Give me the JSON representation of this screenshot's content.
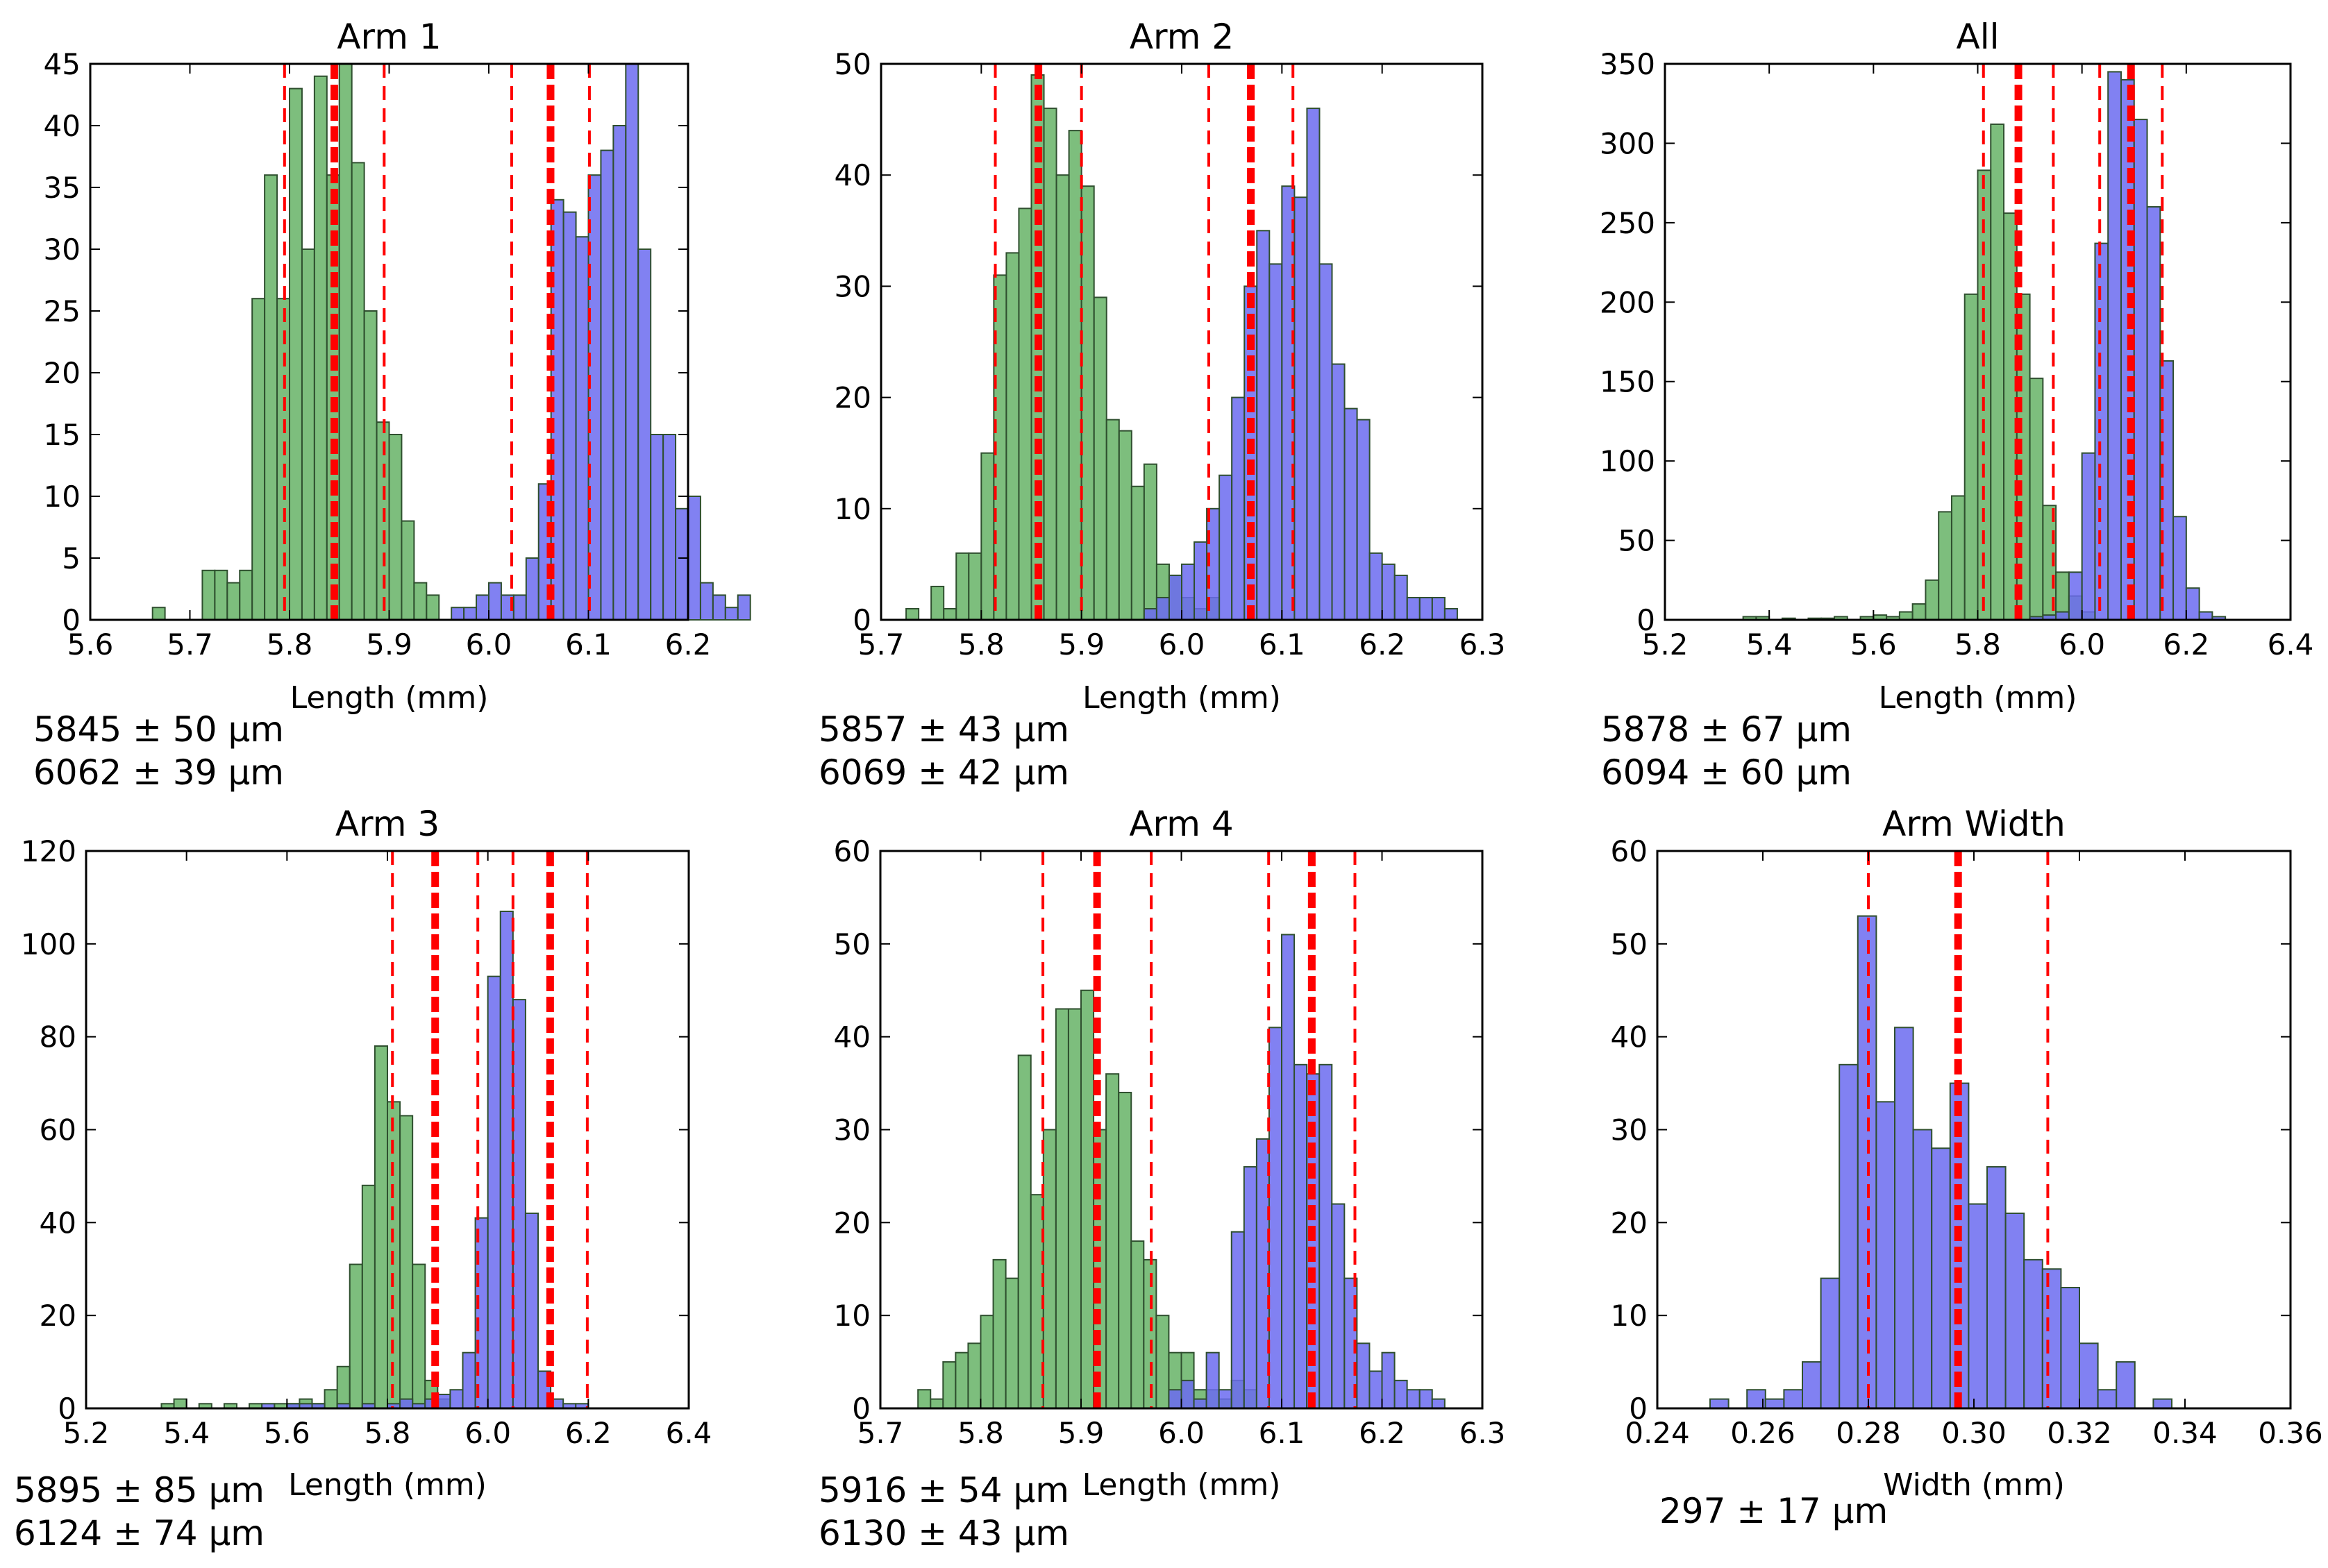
{
  "colors": {
    "green_bar": "#66b366",
    "blue_bar": "#6b6bf0",
    "edge": "#2f4f2f",
    "mean_line": "#ff0000"
  },
  "chart_data": [
    {
      "type": "histogram",
      "title": "Arm 1",
      "xlabel": "Length (mm)",
      "xlim": [
        5.6,
        6.2
      ],
      "ylim": [
        0,
        45
      ],
      "xticks": [
        "5.6",
        "5.7",
        "5.8",
        "5.9",
        "6.0",
        "6.1",
        "6.2"
      ],
      "yticks": [
        "0",
        "5",
        "10",
        "15",
        "20",
        "25",
        "30",
        "35",
        "40",
        "45"
      ],
      "bin_width": 0.0125,
      "series": [
        {
          "color": "green",
          "start": 5.6625,
          "values": [
            1,
            0,
            0,
            0,
            4,
            4,
            3,
            4,
            26,
            36,
            26,
            43,
            30,
            44,
            36,
            45,
            37,
            25,
            16,
            15,
            8,
            3,
            2,
            0,
            0,
            0,
            0,
            0,
            0,
            0
          ]
        },
        {
          "color": "blue",
          "start": 5.9625,
          "values": [
            1,
            1,
            2,
            3,
            2,
            2,
            5,
            11,
            34,
            33,
            31,
            36,
            38,
            40,
            45,
            30,
            15,
            15,
            9,
            10,
            3,
            2,
            1,
            2
          ]
        }
      ],
      "lines": [
        {
          "x": 5.795,
          "style": "dashed"
        },
        {
          "x": 5.845,
          "style": "mean"
        },
        {
          "x": 5.895,
          "style": "dashed"
        },
        {
          "x": 6.023,
          "style": "dashed"
        },
        {
          "x": 6.062,
          "style": "mean"
        },
        {
          "x": 6.101,
          "style": "dashed"
        }
      ],
      "stats": [
        "5845 ± 50 μm",
        "6062 ± 39 μm"
      ]
    },
    {
      "type": "histogram",
      "title": "Arm 2",
      "xlabel": "Length (mm)",
      "xlim": [
        5.7,
        6.3
      ],
      "ylim": [
        0,
        50
      ],
      "xticks": [
        "5.7",
        "5.8",
        "5.9",
        "6.0",
        "6.1",
        "6.2",
        "6.3"
      ],
      "yticks": [
        "0",
        "10",
        "20",
        "30",
        "40",
        "50"
      ],
      "bin_width": 0.0125,
      "series": [
        {
          "color": "green",
          "start": 5.7125,
          "values": [
            0,
            1,
            0,
            3,
            1,
            6,
            6,
            15,
            31,
            33,
            37,
            49,
            46,
            40,
            44,
            39,
            29,
            18,
            17,
            12,
            14,
            5,
            4,
            2,
            1,
            2,
            0
          ]
        },
        {
          "color": "blue",
          "start": 5.9625,
          "values": [
            1,
            2,
            4,
            5,
            7,
            10,
            13,
            20,
            30,
            35,
            32,
            39,
            38,
            46,
            32,
            23,
            19,
            18,
            6,
            5,
            4,
            2,
            2,
            2,
            1
          ]
        }
      ],
      "lines": [
        {
          "x": 5.814,
          "style": "dashed"
        },
        {
          "x": 5.857,
          "style": "mean"
        },
        {
          "x": 5.9,
          "style": "dashed"
        },
        {
          "x": 6.027,
          "style": "dashed"
        },
        {
          "x": 6.069,
          "style": "mean"
        },
        {
          "x": 6.111,
          "style": "dashed"
        }
      ],
      "stats": [
        "5857 ± 43 μm",
        "6069 ± 42 μm"
      ]
    },
    {
      "type": "histogram",
      "title": "All",
      "xlabel": "Length (mm)",
      "xlim": [
        5.2,
        6.4
      ],
      "ylim": [
        0,
        350
      ],
      "xticks": [
        "5.2",
        "5.4",
        "5.6",
        "5.8",
        "6.0",
        "6.2",
        "6.4"
      ],
      "yticks": [
        "0",
        "50",
        "100",
        "150",
        "200",
        "250",
        "300",
        "350"
      ],
      "bin_width": 0.025,
      "series": [
        {
          "color": "green",
          "start": 5.35,
          "values": [
            2,
            2,
            0,
            1,
            0,
            1,
            1,
            2,
            0,
            2,
            3,
            2,
            5,
            10,
            25,
            68,
            78,
            205,
            283,
            312,
            256,
            205,
            152,
            72,
            30,
            15,
            5,
            0,
            0,
            0
          ]
        },
        {
          "color": "blue",
          "start": 5.9,
          "values": [
            2,
            3,
            5,
            30,
            105,
            237,
            345,
            340,
            315,
            260,
            163,
            65,
            20,
            5,
            2
          ]
        }
      ],
      "lines": [
        {
          "x": 5.811,
          "style": "dashed"
        },
        {
          "x": 5.878,
          "style": "mean"
        },
        {
          "x": 5.945,
          "style": "dashed"
        },
        {
          "x": 6.034,
          "style": "dashed"
        },
        {
          "x": 6.094,
          "style": "mean"
        },
        {
          "x": 6.154,
          "style": "dashed"
        }
      ],
      "stats": [
        "5878 ± 67 μm",
        "6094 ± 60 μm"
      ]
    },
    {
      "type": "histogram",
      "title": "Arm 3",
      "xlabel": "Length (mm)",
      "xlim": [
        5.2,
        6.4
      ],
      "ylim": [
        0,
        120
      ],
      "xticks": [
        "5.2",
        "5.4",
        "5.6",
        "5.8",
        "6.0",
        "6.2",
        "6.4"
      ],
      "yticks": [
        "0",
        "20",
        "40",
        "60",
        "80",
        "100",
        "120"
      ],
      "bin_width": 0.025,
      "series": [
        {
          "color": "green",
          "start": 5.35,
          "values": [
            1,
            2,
            0,
            1,
            0,
            1,
            0,
            1,
            0,
            1,
            1,
            2,
            1,
            4,
            9,
            31,
            48,
            78,
            66,
            63,
            31,
            6,
            2,
            0,
            0,
            0,
            0,
            0,
            0
          ]
        },
        {
          "color": "blue",
          "start": 5.55,
          "values": [
            1,
            0,
            1,
            1,
            1,
            0,
            1,
            0,
            1,
            0,
            1,
            2,
            1,
            2,
            3,
            4,
            12,
            41,
            93,
            107,
            88,
            42,
            8,
            2,
            1,
            1
          ]
        }
      ],
      "lines": [
        {
          "x": 5.81,
          "style": "dashed"
        },
        {
          "x": 5.895,
          "style": "mean"
        },
        {
          "x": 5.98,
          "style": "dashed"
        },
        {
          "x": 6.05,
          "style": "dashed"
        },
        {
          "x": 6.124,
          "style": "mean"
        },
        {
          "x": 6.198,
          "style": "dashed"
        }
      ],
      "stats": [
        "5895 ± 85 μm",
        "6124 ± 74 μm"
      ]
    },
    {
      "type": "histogram",
      "title": "Arm 4",
      "xlabel": "Length (mm)",
      "xlim": [
        5.7,
        6.3
      ],
      "ylim": [
        0,
        60
      ],
      "xticks": [
        "5.7",
        "5.8",
        "5.9",
        "6.0",
        "6.1",
        "6.2",
        "6.3"
      ],
      "yticks": [
        "0",
        "10",
        "20",
        "30",
        "40",
        "50",
        "60"
      ],
      "bin_width": 0.0125,
      "series": [
        {
          "color": "green",
          "start": 5.7375,
          "values": [
            2,
            1,
            5,
            6,
            7,
            10,
            16,
            14,
            38,
            23,
            30,
            43,
            43,
            45,
            30,
            36,
            34,
            18,
            16,
            10,
            6,
            6,
            2,
            2,
            1,
            3,
            2,
            0
          ]
        },
        {
          "color": "blue",
          "start": 5.9875,
          "values": [
            2,
            3,
            1,
            6,
            2,
            19,
            26,
            29,
            41,
            51,
            37,
            36,
            37,
            22,
            14,
            7,
            4,
            6,
            3,
            2,
            2,
            1
          ]
        }
      ],
      "lines": [
        {
          "x": 5.862,
          "style": "dashed"
        },
        {
          "x": 5.916,
          "style": "mean"
        },
        {
          "x": 5.97,
          "style": "dashed"
        },
        {
          "x": 6.087,
          "style": "dashed"
        },
        {
          "x": 6.13,
          "style": "mean"
        },
        {
          "x": 6.173,
          "style": "dashed"
        }
      ],
      "stats": [
        "5916 ± 54 μm",
        "6130 ± 43 μm"
      ]
    },
    {
      "type": "histogram",
      "title": "Arm Width",
      "xlabel": "Width (mm)",
      "xlim": [
        0.24,
        0.36
      ],
      "ylim": [
        0,
        60
      ],
      "xticks": [
        "0.24",
        "0.26",
        "0.28",
        "0.30",
        "0.32",
        "0.34",
        "0.36"
      ],
      "yticks": [
        "0",
        "10",
        "20",
        "30",
        "40",
        "50",
        "60"
      ],
      "bin_width": 0.0035,
      "series": [
        {
          "color": "blue",
          "start": 0.25,
          "values": [
            1,
            0,
            2,
            1,
            2,
            5,
            14,
            37,
            53,
            33,
            41,
            30,
            28,
            35,
            22,
            26,
            21,
            16,
            15,
            13,
            7,
            2,
            5,
            0,
            1
          ]
        }
      ],
      "lines": [
        {
          "x": 0.28,
          "style": "dashed"
        },
        {
          "x": 0.297,
          "style": "mean"
        },
        {
          "x": 0.314,
          "style": "dashed"
        }
      ],
      "stats": [
        "297 ± 17 μm"
      ]
    }
  ]
}
